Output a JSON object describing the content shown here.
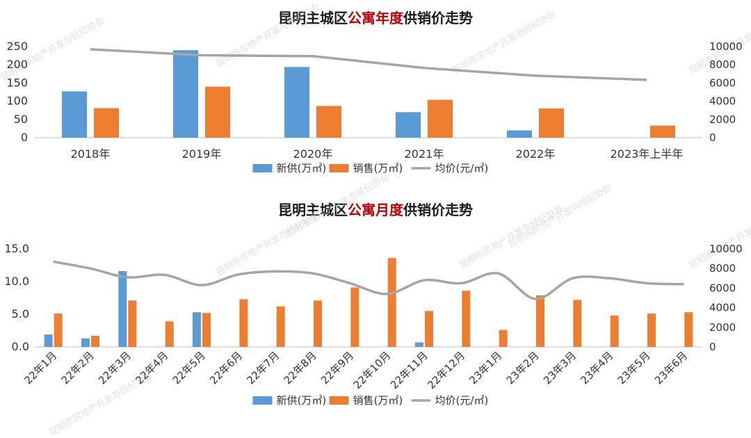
{
  "watermark": "昆明市房地产开发与经纪协会",
  "colors": {
    "supply": "#5B9BD5",
    "sales": "#ED7D31",
    "price": "#A5A5A5",
    "highlight": "#C00000"
  },
  "chart_data": [
    {
      "type": "bar",
      "title_parts": [
        "昆明主城区",
        "公寓年度",
        "供销价走势"
      ],
      "categories": [
        "2018年",
        "2019年",
        "2020年",
        "2021年",
        "2022年",
        "2023年上半年"
      ],
      "series": [
        {
          "name": "新供(万㎡)",
          "kind": "bar",
          "axis": "left",
          "values": [
            127,
            240,
            194,
            70,
            20,
            null
          ]
        },
        {
          "name": "销售(万㎡)",
          "kind": "bar",
          "axis": "left",
          "values": [
            81,
            140,
            87,
            104,
            80,
            33
          ]
        },
        {
          "name": "均价(元/㎡)",
          "kind": "line",
          "axis": "right",
          "values": [
            9700,
            9050,
            8950,
            7650,
            6800,
            6350
          ]
        }
      ],
      "ylim": [
        0,
        250
      ],
      "yticks": [
        "250",
        "200",
        "150",
        "100",
        "50",
        "0"
      ],
      "y2lim": [
        0,
        10000
      ],
      "y2ticks": [
        "10000",
        "8000",
        "6000",
        "4000",
        "2000",
        "0"
      ],
      "legend": "bottom",
      "grid": false
    },
    {
      "type": "bar",
      "title_parts": [
        "昆明主城区",
        "公寓月度",
        "供销价走势"
      ],
      "categories": [
        "22年1月",
        "22年2月",
        "22年3月",
        "22年4月",
        "22年5月",
        "22年6月",
        "22年7月",
        "22年8月",
        "22年9月",
        "22年10月",
        "22年11月",
        "22年12月",
        "23年1月",
        "23年2月",
        "23年3月",
        "23年4月",
        "23年5月",
        "23年6月"
      ],
      "series": [
        {
          "name": "新供(万㎡)",
          "kind": "bar",
          "axis": "left",
          "values": [
            1.9,
            1.3,
            11.6,
            null,
            5.3,
            null,
            null,
            null,
            null,
            null,
            0.7,
            null,
            null,
            null,
            null,
            null,
            null,
            null
          ]
        },
        {
          "name": "销售(万㎡)",
          "kind": "bar",
          "axis": "left",
          "values": [
            5.1,
            1.7,
            7.1,
            3.9,
            5.2,
            7.3,
            6.2,
            7.1,
            9.1,
            13.6,
            5.5,
            8.6,
            2.6,
            7.9,
            7.2,
            4.8,
            5.1,
            5.3
          ]
        },
        {
          "name": "均价(元/㎡)",
          "kind": "line",
          "axis": "right",
          "values": [
            8700,
            8000,
            7100,
            7350,
            6300,
            7400,
            7700,
            7500,
            6500,
            5400,
            6800,
            6500,
            7500,
            4900,
            7000,
            7000,
            6500,
            6400
          ]
        }
      ],
      "ylim": [
        0,
        15
      ],
      "yticks": [
        "15.0",
        "10.0",
        "5.0",
        "0.0"
      ],
      "y2lim": [
        0,
        10000
      ],
      "y2ticks": [
        "10000",
        "8000",
        "6000",
        "4000",
        "2000",
        "0"
      ],
      "legend": "bottom",
      "grid": false
    }
  ]
}
